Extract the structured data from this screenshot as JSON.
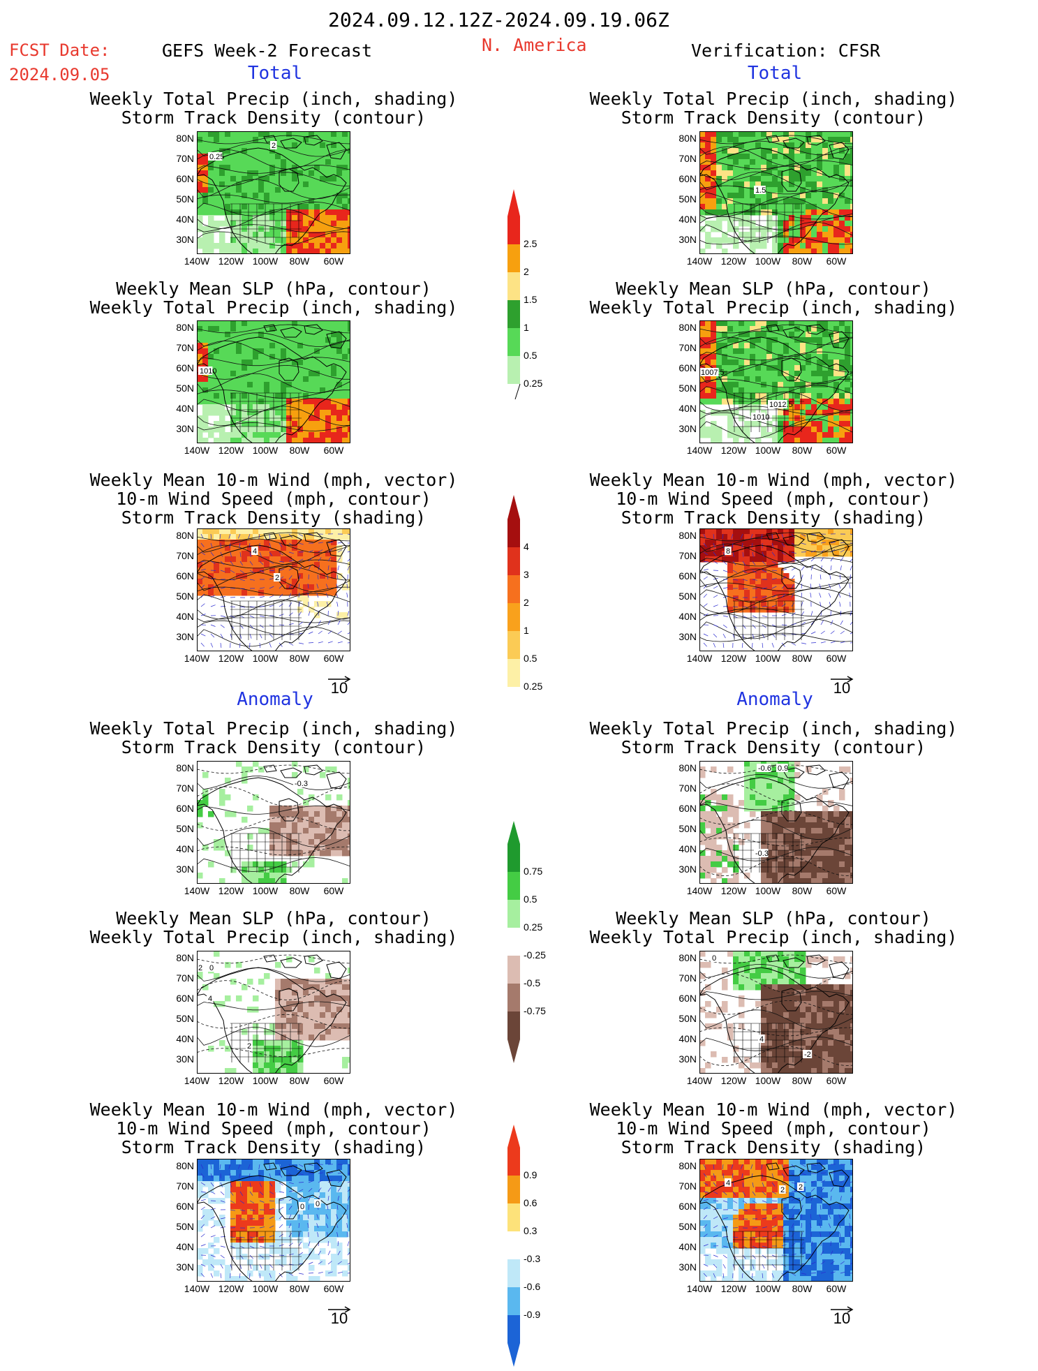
{
  "header": {
    "date_range": "2024.09.12.12Z-2024.09.19.06Z",
    "fcst_label": "FCST Date:",
    "fcst_date": "2024.09.05",
    "model": "GEFS Week-2 Forecast",
    "region": "N. America",
    "verification": "Verification: CFSR"
  },
  "sections": {
    "total": "Total",
    "anomaly": "Anomaly"
  },
  "panel_titles": {
    "precip_track": [
      "Weekly Total Precip (inch, shading)",
      "Storm Track Density (contour)"
    ],
    "slp_precip": [
      "Weekly Mean SLP (hPa, contour)",
      "Weekly Total Precip (inch, shading)"
    ],
    "wind_track": [
      "Weekly Mean 10-m Wind (mph, vector)",
      "10-m Wind Speed (mph, contour)",
      "Storm Track Density (shading)"
    ]
  },
  "axes": {
    "lat_ticks": [
      "80N",
      "70N",
      "60N",
      "50N",
      "40N",
      "30N"
    ],
    "lon_ticks": [
      "140W",
      "120W",
      "100W",
      "80W",
      "60W"
    ]
  },
  "vector_reference": "10",
  "contour_labels": {
    "fc_total_precip": [
      "2",
      "0.25"
    ],
    "fc_total_slp": [
      "1010"
    ],
    "fc_total_wind": [
      "4",
      "2"
    ],
    "ver_total_precip": [
      "1.5"
    ],
    "ver_total_slp": [
      "1007.5",
      "1012.5",
      "1010"
    ],
    "ver_total_wind": [
      "8"
    ],
    "fc_anom_precip": [
      "-0.3"
    ],
    "fc_anom_slp": [
      "2",
      "0",
      "4",
      "2"
    ],
    "fc_anom_wind": [
      "0",
      "0"
    ],
    "ver_anom_precip": [
      "-0.6",
      "0.9",
      "-0.3"
    ],
    "ver_anom_slp": [
      "0",
      "4",
      "-2"
    ],
    "ver_anom_wind": [
      "4",
      "2",
      "2"
    ]
  },
  "colorbars": {
    "precip": {
      "labels": [
        "2.5",
        "2",
        "1.5",
        "1",
        "0.5",
        "0.25"
      ],
      "colors": [
        "#e8261c",
        "#f7a00f",
        "#fde385",
        "#2ea02e",
        "#57d957",
        "#b8f0b0"
      ]
    },
    "track": {
      "labels": [
        "4",
        "3",
        "2",
        "1",
        "0.5",
        "0.25"
      ],
      "colors": [
        "#a50f0f",
        "#e0321c",
        "#f6701e",
        "#f9a11c",
        "#fbcb55",
        "#fdf0a6"
      ]
    },
    "precip_anom": {
      "labels": [
        "0.75",
        "0.5",
        "0.25",
        "-0.25",
        "-0.5",
        "-0.75"
      ],
      "colors": [
        "#1f9a2e",
        "#44cc44",
        "#a6ef9f",
        "#ffffff",
        "#dcbcb2",
        "#a57a6c",
        "#6b4538"
      ]
    },
    "wind_anom": {
      "labels": [
        "0.9",
        "0.6",
        "0.3",
        "-0.3",
        "-0.6",
        "-0.9"
      ],
      "colors": [
        "#ec3a1c",
        "#f59a16",
        "#fde27a",
        "#ffffff",
        "#bfe8f8",
        "#5ab8ef",
        "#1c64d6"
      ]
    }
  }
}
